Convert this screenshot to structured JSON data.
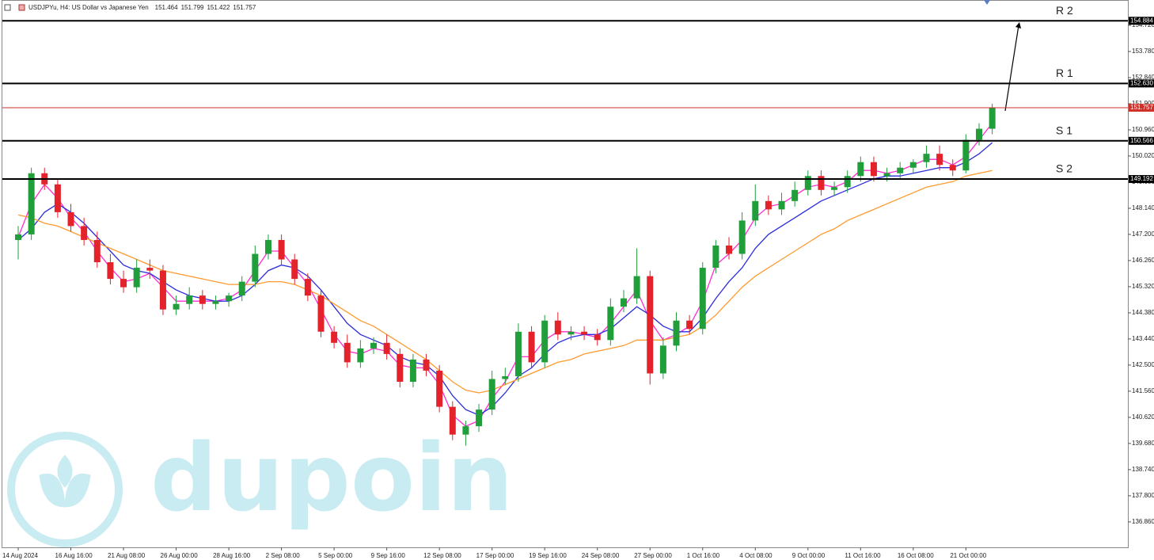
{
  "chart_data": {
    "type": "candlestick",
    "title": "USDJPYu, H4:  US Dollar vs Japanese Yen",
    "header_values": [
      151.464,
      151.799,
      151.422,
      151.757
    ],
    "watermark": "dupoin",
    "categories": [
      "14 Aug 2024",
      null,
      null,
      null,
      "16 Aug 16:00",
      null,
      null,
      null,
      "21 Aug 08:00",
      null,
      null,
      null,
      "26 Aug 00:00",
      null,
      null,
      null,
      "28 Aug 16:00",
      null,
      null,
      null,
      "2 Sep 08:00",
      null,
      null,
      null,
      "5 Sep 00:00",
      null,
      null,
      null,
      "9 Sep 16:00",
      null,
      null,
      null,
      "12 Sep 08:00",
      null,
      null,
      null,
      "17 Sep 00:00",
      null,
      null,
      null,
      "19 Sep 16:00",
      null,
      null,
      null,
      "24 Sep 08:00",
      null,
      null,
      null,
      "27 Sep 00:00",
      null,
      null,
      null,
      "1 Oct 16:00",
      null,
      null,
      null,
      "4 Oct 08:00",
      null,
      null,
      null,
      "9 Oct 00:00",
      null,
      null,
      null,
      "11 Oct 16:00",
      null,
      null,
      null,
      "16 Oct 08:00",
      null,
      null,
      null,
      "21 Oct 00:00",
      null,
      null
    ],
    "open": [
      147.0,
      147.2,
      149.4,
      149.0,
      148.0,
      147.5,
      147.0,
      146.2,
      145.6,
      145.3,
      146.0,
      145.9,
      144.5,
      144.7,
      145.0,
      144.7,
      144.8,
      145.0,
      145.5,
      146.5,
      147.0,
      146.3,
      145.6,
      145.0,
      143.7,
      143.3,
      142.6,
      143.1,
      143.3,
      142.9,
      141.9,
      142.7,
      142.3,
      141.0,
      140.0,
      140.3,
      140.9,
      142.0,
      142.1,
      143.7,
      142.6,
      144.1,
      143.6,
      143.7,
      143.6,
      143.4,
      144.6,
      144.9,
      145.7,
      142.2,
      143.2,
      144.1,
      143.8,
      146.0,
      146.8,
      146.5,
      147.7,
      148.4,
      148.1,
      148.4,
      148.8,
      149.3,
      148.8,
      148.9,
      149.3,
      149.8,
      149.3,
      149.4,
      149.6,
      149.8,
      150.1,
      149.7,
      149.5,
      150.6,
      151.0
    ],
    "high": [
      147.5,
      149.6,
      149.6,
      149.2,
      148.3,
      147.8,
      147.3,
      146.5,
      145.9,
      146.3,
      146.3,
      146.1,
      145.0,
      145.3,
      145.2,
      145.0,
      145.1,
      145.7,
      146.8,
      147.2,
      147.2,
      146.5,
      145.8,
      145.2,
      143.9,
      143.6,
      143.4,
      143.5,
      143.6,
      143.1,
      142.9,
      142.9,
      142.5,
      141.2,
      140.5,
      141.1,
      142.3,
      142.4,
      144.0,
      143.9,
      144.3,
      144.4,
      143.9,
      143.9,
      143.8,
      144.9,
      145.2,
      146.7,
      145.9,
      143.5,
      144.4,
      144.3,
      146.2,
      147.0,
      147.1,
      148.0,
      149.0,
      148.6,
      148.7,
      149.1,
      149.5,
      149.5,
      149.1,
      149.5,
      150.0,
      150.0,
      149.6,
      149.8,
      149.9,
      150.4,
      150.4,
      149.9,
      150.8,
      151.2,
      151.9
    ],
    "low": [
      146.3,
      147.0,
      148.8,
      147.8,
      147.3,
      146.8,
      146.0,
      145.4,
      145.1,
      145.1,
      145.6,
      144.3,
      144.3,
      144.5,
      144.5,
      144.5,
      144.6,
      144.8,
      145.3,
      146.3,
      146.1,
      145.4,
      144.8,
      143.5,
      143.1,
      142.4,
      142.4,
      142.9,
      142.7,
      141.7,
      141.7,
      142.1,
      140.8,
      139.8,
      139.6,
      140.1,
      140.7,
      141.8,
      141.9,
      142.4,
      142.4,
      143.4,
      143.4,
      143.4,
      143.2,
      143.2,
      144.4,
      144.7,
      141.8,
      142.0,
      143.0,
      143.6,
      143.6,
      145.8,
      146.3,
      146.3,
      147.5,
      147.9,
      147.9,
      148.2,
      148.6,
      148.6,
      148.6,
      148.7,
      149.1,
      149.1,
      149.1,
      149.2,
      149.4,
      149.6,
      149.5,
      149.3,
      149.4,
      150.4,
      150.8
    ],
    "close": [
      147.2,
      149.4,
      149.0,
      148.0,
      147.5,
      147.0,
      146.2,
      145.6,
      145.3,
      146.0,
      145.9,
      144.5,
      144.7,
      145.0,
      144.7,
      144.8,
      145.0,
      145.5,
      146.5,
      147.0,
      146.3,
      145.6,
      145.0,
      143.7,
      143.3,
      142.6,
      143.1,
      143.3,
      142.9,
      141.9,
      142.7,
      142.3,
      141.0,
      140.0,
      140.3,
      140.9,
      142.0,
      142.1,
      143.7,
      142.6,
      144.1,
      143.6,
      143.7,
      143.6,
      143.4,
      144.6,
      144.9,
      145.7,
      142.2,
      143.2,
      144.1,
      143.8,
      146.0,
      146.8,
      146.5,
      147.7,
      148.4,
      148.1,
      148.4,
      148.8,
      149.3,
      148.8,
      148.9,
      149.3,
      149.8,
      149.3,
      149.4,
      149.6,
      149.8,
      150.1,
      149.7,
      149.5,
      150.6,
      151.0,
      151.76
    ],
    "up_color": "#1f9e3a",
    "down_color": "#e3222b",
    "lines": [
      {
        "color": "#ff2ccf",
        "values": [
          147.1,
          148.3,
          149.0,
          148.5,
          147.8,
          147.3,
          146.6,
          146.0,
          145.5,
          145.6,
          145.8,
          145.3,
          144.8,
          144.8,
          144.8,
          144.8,
          144.9,
          145.2,
          145.9,
          146.6,
          146.6,
          146.0,
          145.4,
          144.5,
          143.6,
          143.0,
          142.9,
          143.1,
          143.0,
          142.5,
          142.4,
          142.4,
          141.8,
          140.7,
          140.3,
          140.5,
          141.3,
          141.9,
          142.8,
          142.8,
          143.4,
          143.7,
          143.7,
          143.6,
          143.5,
          144.0,
          144.6,
          145.2,
          144.1,
          143.4,
          143.6,
          143.9,
          144.8,
          146.1,
          146.5,
          147.0,
          147.8,
          148.2,
          148.3,
          148.6,
          148.9,
          149.0,
          148.9,
          149.1,
          149.5,
          149.5,
          149.4,
          149.5,
          149.7,
          149.9,
          149.9,
          149.7,
          150.0,
          150.6,
          151.2
        ]
      },
      {
        "color": "#2d2ddc",
        "values": [
          147.0,
          147.4,
          148.0,
          148.3,
          148.0,
          147.6,
          147.1,
          146.6,
          146.1,
          145.9,
          145.8,
          145.5,
          145.2,
          145.0,
          144.9,
          144.8,
          144.8,
          145.0,
          145.4,
          145.9,
          146.1,
          146.0,
          145.7,
          145.2,
          144.6,
          144.0,
          143.6,
          143.4,
          143.2,
          142.8,
          142.6,
          142.5,
          142.1,
          141.4,
          140.9,
          140.7,
          141.0,
          141.5,
          142.1,
          142.4,
          142.9,
          143.3,
          143.5,
          143.6,
          143.6,
          143.8,
          144.2,
          144.6,
          144.3,
          143.9,
          143.7,
          143.7,
          144.2,
          144.9,
          145.5,
          146.0,
          146.7,
          147.2,
          147.5,
          147.8,
          148.1,
          148.4,
          148.6,
          148.8,
          149.0,
          149.2,
          149.3,
          149.3,
          149.4,
          149.5,
          149.6,
          149.6,
          149.8,
          150.1,
          150.5
        ]
      },
      {
        "color": "#ff9a2e",
        "values": [
          147.9,
          147.8,
          147.6,
          147.5,
          147.3,
          147.1,
          146.9,
          146.7,
          146.5,
          146.3,
          146.1,
          145.9,
          145.8,
          145.7,
          145.6,
          145.5,
          145.4,
          145.4,
          145.4,
          145.5,
          145.5,
          145.4,
          145.2,
          145.0,
          144.7,
          144.4,
          144.1,
          143.9,
          143.6,
          143.3,
          143.0,
          142.7,
          142.3,
          141.9,
          141.6,
          141.5,
          141.6,
          141.8,
          142.0,
          142.2,
          142.4,
          142.6,
          142.7,
          142.9,
          143.0,
          143.1,
          143.2,
          143.4,
          143.4,
          143.4,
          143.5,
          143.6,
          143.9,
          144.3,
          144.8,
          145.3,
          145.7,
          146.0,
          146.3,
          146.6,
          146.9,
          147.2,
          147.4,
          147.7,
          147.9,
          148.1,
          148.3,
          148.5,
          148.7,
          148.9,
          149.0,
          149.1,
          149.3,
          149.4,
          149.5
        ]
      }
    ],
    "levels": [
      {
        "name": "R 2",
        "value": 154.884,
        "color": "#000000"
      },
      {
        "name": "R 1",
        "value": {
          "value": 152.63,
          "label": "152.630"
        },
        "color": "#000000"
      },
      {
        "value": 151.757,
        "color": "#d0302a"
      },
      {
        "name": "S 1",
        "value": 150.566,
        "color": "#000000"
      },
      {
        "name": "S 2",
        "value": 149.192,
        "color": "#000000"
      }
    ],
    "ylim": [
      135.945,
      155.603
    ],
    "yticks": [
      {
        "value": 154.72,
        "label": "154.720"
      },
      {
        "value": 153.78,
        "label": "153.780"
      },
      {
        "value": 152.84,
        "label": "152.840"
      },
      {
        "value": 151.9,
        "label": "151.900"
      },
      {
        "value": 150.96,
        "label": "150.960"
      },
      {
        "value": 150.02,
        "label": "150.020"
      },
      {
        "value": 149.08,
        "label": "149.080"
      },
      {
        "value": 148.14,
        "label": "148.140"
      },
      {
        "value": 147.2,
        "label": "147.200"
      },
      {
        "value": 146.26,
        "label": "146.260"
      },
      {
        "value": 145.32,
        "label": "145.320"
      },
      {
        "value": 144.38,
        "label": "144.380"
      },
      {
        "value": 143.44,
        "label": "143.440"
      },
      {
        "value": 142.5,
        "label": "142.500"
      },
      {
        "value": 141.56,
        "label": "141.560"
      },
      {
        "value": 140.62,
        "label": "140.620"
      },
      {
        "value": 139.68,
        "label": "139.680"
      },
      {
        "value": 138.74,
        "label": "138.740"
      },
      {
        "value": 137.8,
        "label": "137.800"
      },
      {
        "value": 136.86,
        "label": "136.860"
      }
    ]
  }
}
